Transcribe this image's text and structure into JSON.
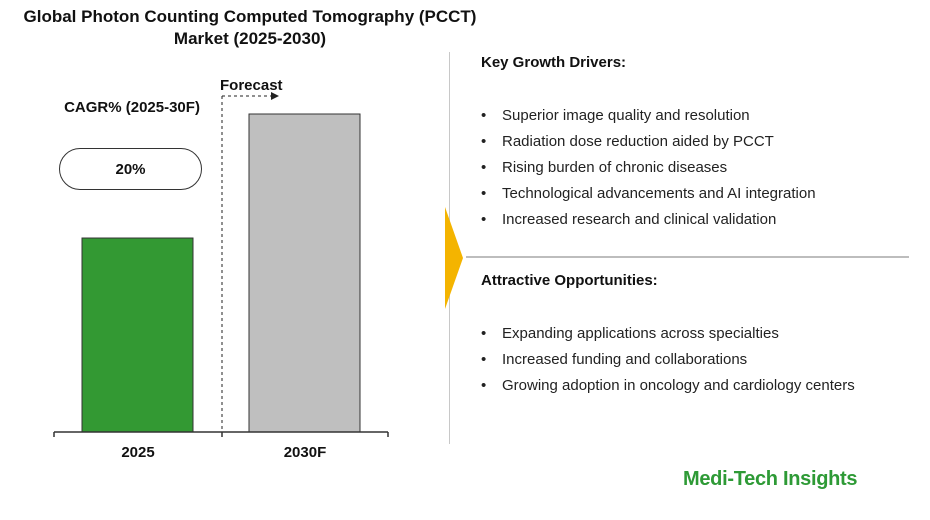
{
  "chart_data": {
    "type": "bar",
    "title": "Global Photon Counting Computed Tomography (PCCT) Market (2025-2030)",
    "categories": [
      "2025",
      "2030F"
    ],
    "values": [
      0.61,
      1.0
    ],
    "value_note": "relative bar heights, no axis values printed",
    "colors": [
      "#339933",
      "#bfbfbf"
    ],
    "forecast_label": "Forecast",
    "cagr": {
      "label": "CAGR% (2025-30F)",
      "value": "20%"
    },
    "grid": false
  },
  "drivers": {
    "heading": "Key Growth Drivers:",
    "items": [
      "Superior image quality and resolution",
      "Radiation dose reduction aided by PCCT",
      "Rising burden of chronic diseases",
      "Technological advancements and AI integration",
      "Increased research and clinical validation"
    ]
  },
  "opportunities": {
    "heading": "Attractive Opportunities:",
    "items": [
      "Expanding applications across specialties",
      "Increased funding and collaborations",
      "Growing adoption in oncology and cardiology centers"
    ]
  },
  "brand": "Medi-Tech Insights",
  "accent_color": "#f4b400"
}
